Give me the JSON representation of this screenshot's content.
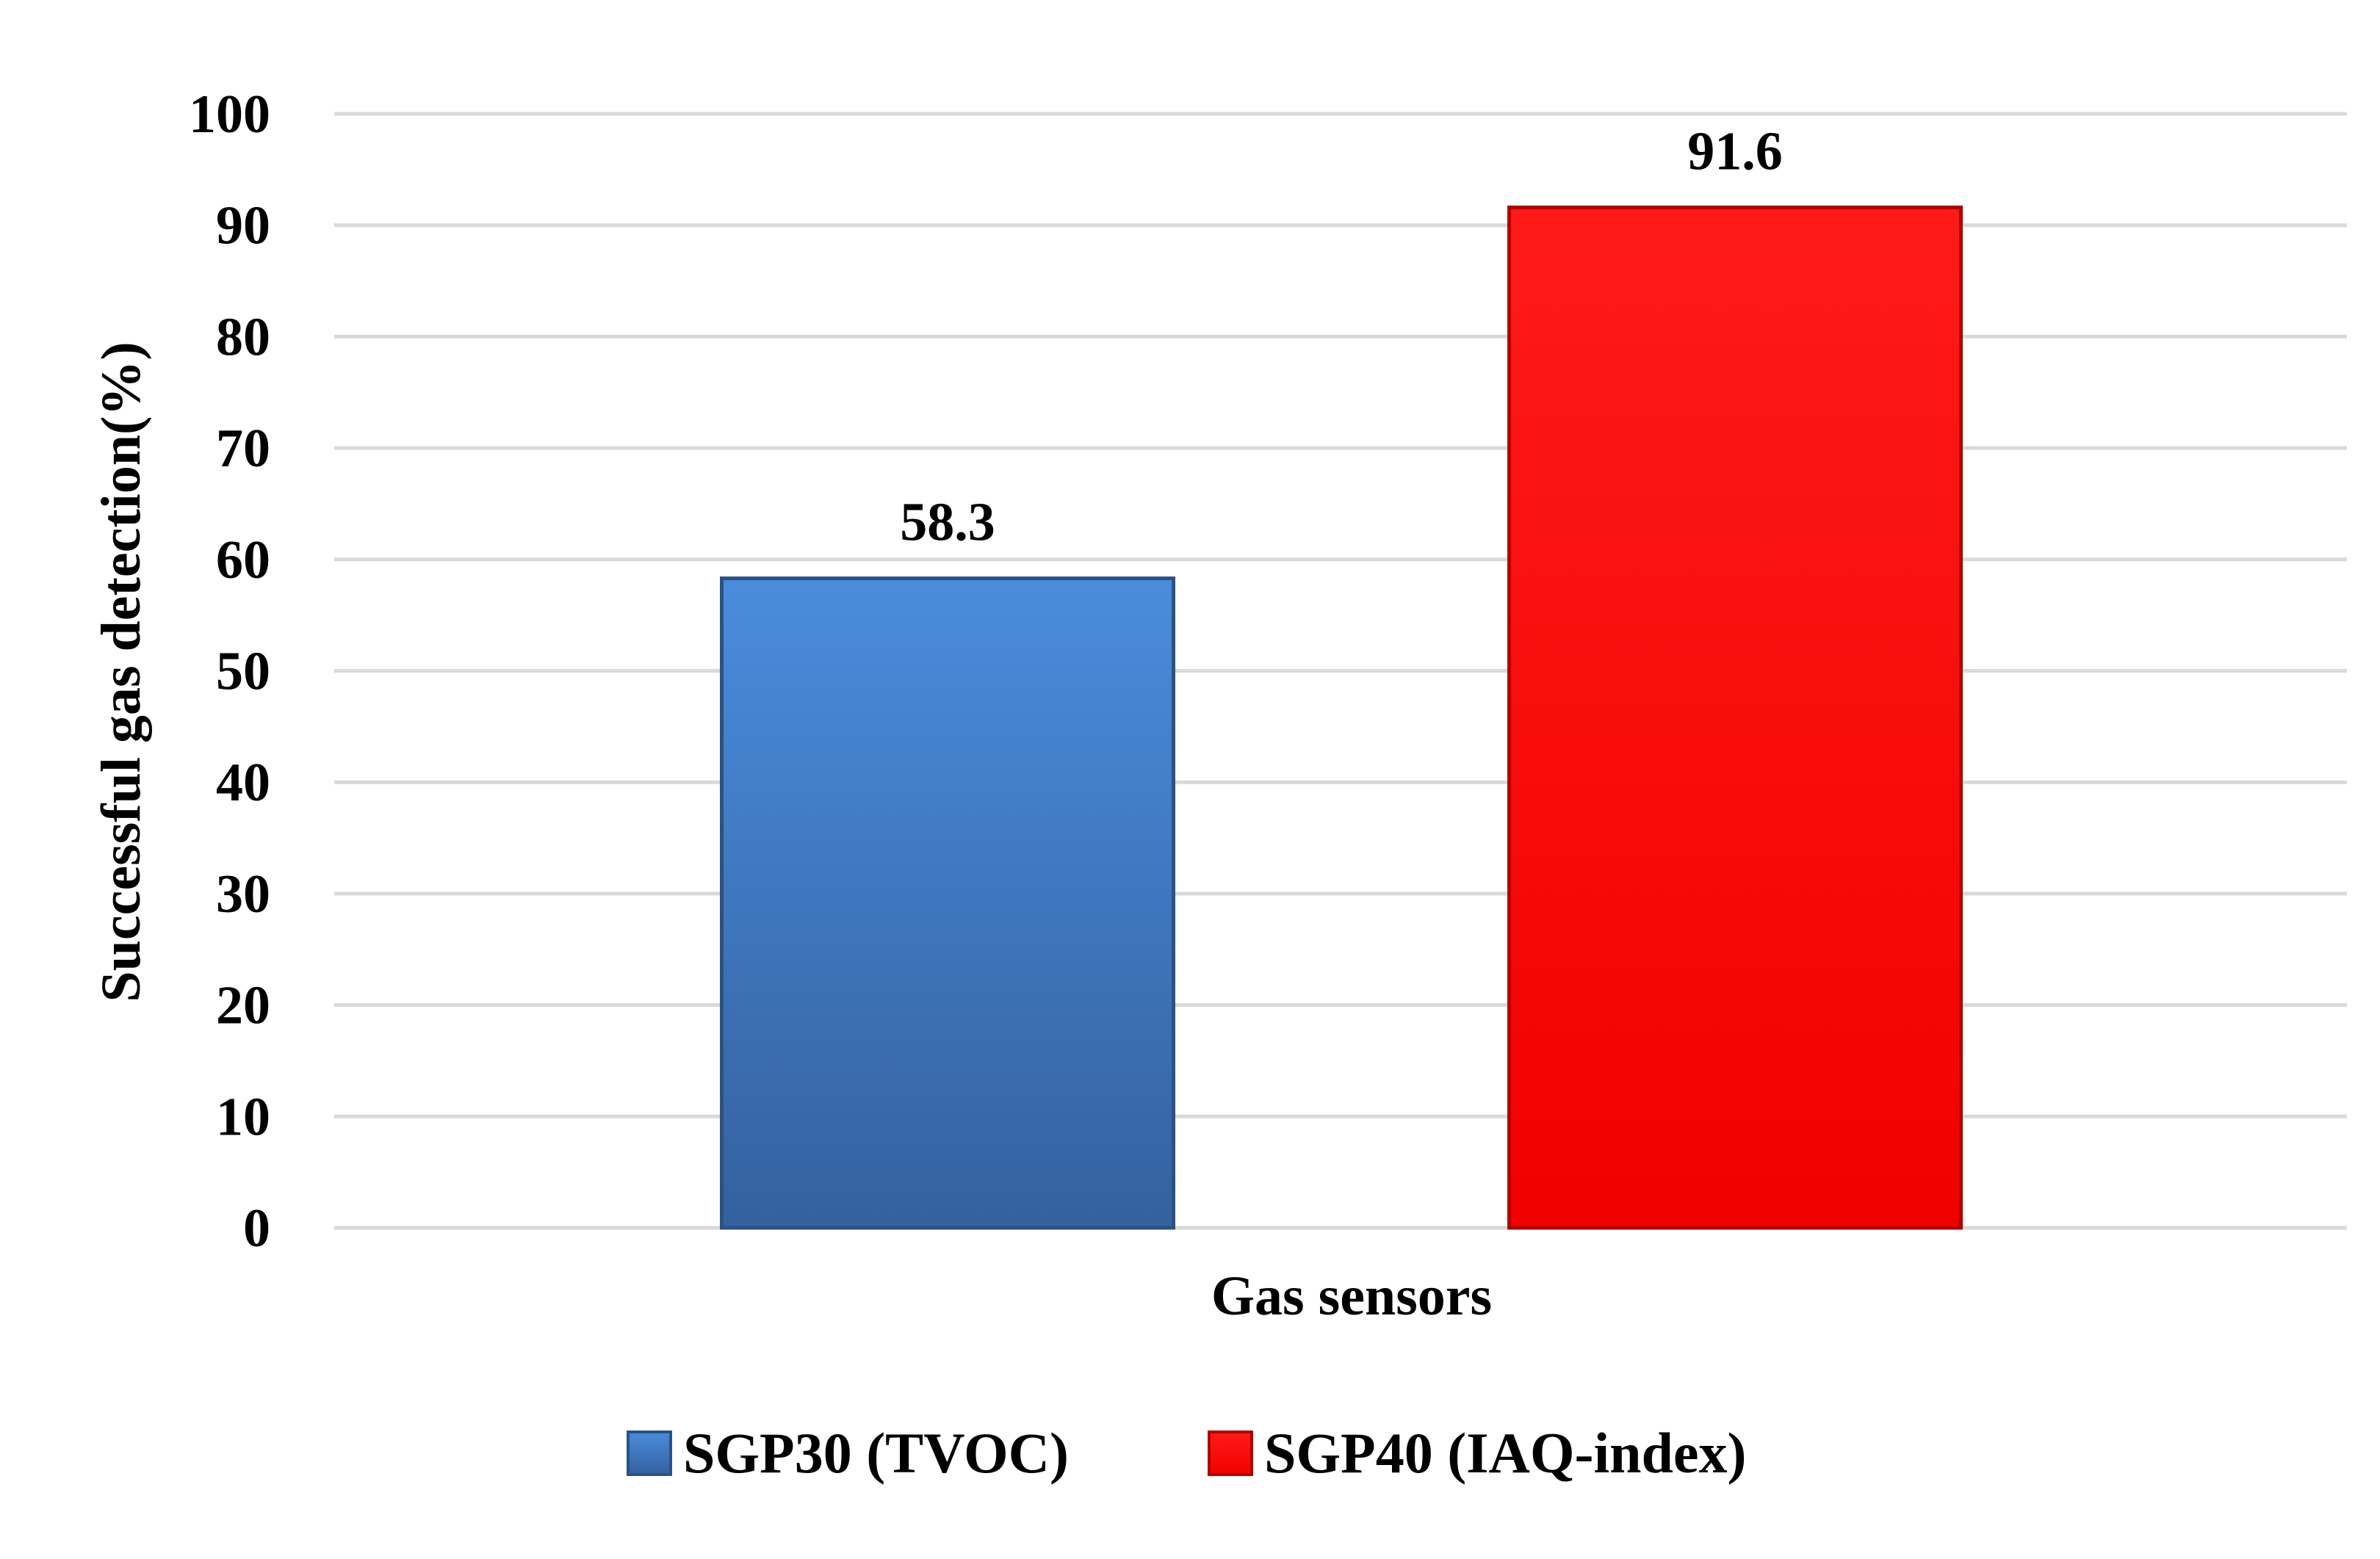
{
  "chart_data": {
    "type": "bar",
    "title": "",
    "xlabel": "Gas sensors",
    "ylabel": "Successful gas detection(%)",
    "ylim": [
      0,
      100
    ],
    "ytick_step": 10,
    "yticks": [
      "0",
      "10",
      "20",
      "30",
      "40",
      "50",
      "60",
      "70",
      "80",
      "90",
      "100"
    ],
    "categories": [
      "Gas sensors"
    ],
    "series": [
      {
        "name": "SGP30 (TVOC)",
        "values": [
          58.3
        ],
        "value_label": "58.3",
        "color": "#3f7ec8"
      },
      {
        "name": "SGP40 (IAQ-index)",
        "values": [
          91.6
        ],
        "value_label": "91.6",
        "color": "#ff0000"
      }
    ],
    "grid": true,
    "legend_position": "bottom-center"
  }
}
